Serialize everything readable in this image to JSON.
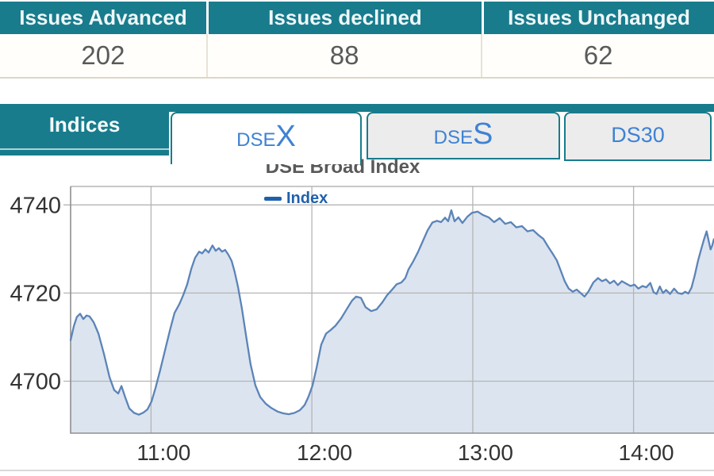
{
  "market_summary": {
    "columns": [
      {
        "label": "Issues Advanced",
        "value": "202"
      },
      {
        "label": "Issues declined",
        "value": "88"
      },
      {
        "label": "Issues Unchanged",
        "value": "62"
      }
    ]
  },
  "tabs": {
    "indices_label": "Indices",
    "items": [
      {
        "label": "DSEX",
        "small": "DSE",
        "large": "X",
        "active": true
      },
      {
        "label": "DSES",
        "small": "DSE",
        "large": "S",
        "active": false
      },
      {
        "label": "DS30",
        "small": "DS30",
        "large": "",
        "active": false
      }
    ]
  },
  "colors": {
    "accent_teal": "#187c8d",
    "tab_text_blue": "#3e82d4",
    "line_blue": "#5b84b8",
    "area_fill": "#dce4ef",
    "legend_blue": "#1f60ab",
    "table_border_cream": "#ddd6c6",
    "grid_gray": "#b5b5b5"
  },
  "chart_data": {
    "type": "area",
    "title": "DSE Broad Index",
    "xlabel": "",
    "ylabel": "",
    "grid": true,
    "legend_position": "top-center",
    "xlim": [
      10.5,
      14.5
    ],
    "ylim": [
      4688.2,
      4744.2
    ],
    "xticks": [
      {
        "t": 11,
        "label": "11:00"
      },
      {
        "t": 12,
        "label": "12:00"
      },
      {
        "t": 13,
        "label": "13:00"
      },
      {
        "t": 14,
        "label": "14:00"
      }
    ],
    "yticks": [
      {
        "v": 4700,
        "label": "4700"
      },
      {
        "v": 4720,
        "label": "4720"
      },
      {
        "v": 4740,
        "label": "4740"
      }
    ],
    "series": [
      {
        "name": "Index",
        "color": "#5b84b8",
        "fill": "#dce4ef",
        "points": [
          [
            10.5,
            4709.3
          ],
          [
            10.52,
            4712.5
          ],
          [
            10.539,
            4714.6
          ],
          [
            10.559,
            4715.3
          ],
          [
            10.579,
            4714.1
          ],
          [
            10.599,
            4714.9
          ],
          [
            10.618,
            4714.7
          ],
          [
            10.643,
            4713.4
          ],
          [
            10.673,
            4710.8
          ],
          [
            10.707,
            4706.2
          ],
          [
            10.742,
            4700.9
          ],
          [
            10.771,
            4698.0
          ],
          [
            10.796,
            4697.2
          ],
          [
            10.816,
            4698.9
          ],
          [
            10.84,
            4696.3
          ],
          [
            10.865,
            4693.8
          ],
          [
            10.895,
            4692.8
          ],
          [
            10.924,
            4692.4
          ],
          [
            10.954,
            4692.9
          ],
          [
            10.978,
            4693.6
          ],
          [
            11.003,
            4695.4
          ],
          [
            11.028,
            4698.5
          ],
          [
            11.057,
            4702.5
          ],
          [
            11.087,
            4707.0
          ],
          [
            11.117,
            4711.5
          ],
          [
            11.146,
            4715.5
          ],
          [
            11.176,
            4717.5
          ],
          [
            11.2,
            4719.5
          ],
          [
            11.225,
            4722.0
          ],
          [
            11.25,
            4725.5
          ],
          [
            11.274,
            4728.0
          ],
          [
            11.299,
            4729.4
          ],
          [
            11.318,
            4729.0
          ],
          [
            11.338,
            4729.9
          ],
          [
            11.358,
            4729.2
          ],
          [
            11.382,
            4730.8
          ],
          [
            11.402,
            4729.6
          ],
          [
            11.422,
            4730.2
          ],
          [
            11.441,
            4729.4
          ],
          [
            11.461,
            4729.8
          ],
          [
            11.481,
            4728.7
          ],
          [
            11.501,
            4727.3
          ],
          [
            11.52,
            4724.8
          ],
          [
            11.54,
            4721.5
          ],
          [
            11.565,
            4716.5
          ],
          [
            11.59,
            4710.5
          ],
          [
            11.619,
            4703.8
          ],
          [
            11.649,
            4699.0
          ],
          [
            11.679,
            4696.4
          ],
          [
            11.713,
            4694.9
          ],
          [
            11.748,
            4693.9
          ],
          [
            11.787,
            4693.1
          ],
          [
            11.822,
            4692.7
          ],
          [
            11.856,
            4692.5
          ],
          [
            11.891,
            4692.8
          ],
          [
            11.925,
            4693.4
          ],
          [
            11.955,
            4694.6
          ],
          [
            11.979,
            4696.5
          ],
          [
            12.004,
            4699.0
          ],
          [
            12.029,
            4703.0
          ],
          [
            12.058,
            4708.3
          ],
          [
            12.088,
            4710.8
          ],
          [
            12.117,
            4711.6
          ],
          [
            12.147,
            4712.6
          ],
          [
            12.181,
            4714.2
          ],
          [
            12.221,
            4716.6
          ],
          [
            12.25,
            4718.3
          ],
          [
            12.275,
            4719.2
          ],
          [
            12.305,
            4718.9
          ],
          [
            12.334,
            4716.8
          ],
          [
            12.369,
            4715.9
          ],
          [
            12.403,
            4716.3
          ],
          [
            12.438,
            4717.9
          ],
          [
            12.467,
            4719.5
          ],
          [
            12.497,
            4720.7
          ],
          [
            12.527,
            4722.0
          ],
          [
            12.556,
            4722.4
          ],
          [
            12.581,
            4723.4
          ],
          [
            12.601,
            4725.4
          ],
          [
            12.63,
            4727.2
          ],
          [
            12.66,
            4729.3
          ],
          [
            12.69,
            4731.8
          ],
          [
            12.719,
            4734.2
          ],
          [
            12.749,
            4736.0
          ],
          [
            12.778,
            4736.4
          ],
          [
            12.803,
            4736.1
          ],
          [
            12.828,
            4737.1
          ],
          [
            12.847,
            4736.3
          ],
          [
            12.867,
            4738.8
          ],
          [
            12.887,
            4736.3
          ],
          [
            12.911,
            4737.2
          ],
          [
            12.936,
            4735.9
          ],
          [
            12.966,
            4737.3
          ],
          [
            12.995,
            4738.2
          ],
          [
            13.03,
            4738.5
          ],
          [
            13.064,
            4737.7
          ],
          [
            13.099,
            4737.2
          ],
          [
            13.133,
            4736.1
          ],
          [
            13.168,
            4737.0
          ],
          [
            13.202,
            4735.7
          ],
          [
            13.237,
            4736.1
          ],
          [
            13.271,
            4734.9
          ],
          [
            13.306,
            4735.2
          ],
          [
            13.34,
            4734.0
          ],
          [
            13.375,
            4734.3
          ],
          [
            13.41,
            4733.1
          ],
          [
            13.439,
            4732.3
          ],
          [
            13.469,
            4730.5
          ],
          [
            13.498,
            4728.9
          ],
          [
            13.523,
            4727.4
          ],
          [
            13.548,
            4725.0
          ],
          [
            13.572,
            4722.7
          ],
          [
            13.597,
            4721.0
          ],
          [
            13.622,
            4720.3
          ],
          [
            13.646,
            4720.8
          ],
          [
            13.671,
            4720.0
          ],
          [
            13.695,
            4719.2
          ],
          [
            13.72,
            4720.4
          ],
          [
            13.75,
            4722.4
          ],
          [
            13.779,
            4723.4
          ],
          [
            13.804,
            4722.7
          ],
          [
            13.828,
            4723.1
          ],
          [
            13.853,
            4722.2
          ],
          [
            13.878,
            4722.8
          ],
          [
            13.902,
            4721.8
          ],
          [
            13.927,
            4722.7
          ],
          [
            13.956,
            4722.1
          ],
          [
            13.981,
            4721.6
          ],
          [
            14.006,
            4721.9
          ],
          [
            14.03,
            4721.0
          ],
          [
            14.055,
            4721.6
          ],
          [
            14.079,
            4721.3
          ],
          [
            14.104,
            4722.3
          ],
          [
            14.124,
            4720.2
          ],
          [
            14.143,
            4719.8
          ],
          [
            14.163,
            4721.5
          ],
          [
            14.183,
            4720.0
          ],
          [
            14.202,
            4720.7
          ],
          [
            14.227,
            4719.8
          ],
          [
            14.252,
            4721.0
          ],
          [
            14.276,
            4720.0
          ],
          [
            14.301,
            4719.8
          ],
          [
            14.321,
            4720.3
          ],
          [
            14.34,
            4719.9
          ],
          [
            14.36,
            4721.2
          ],
          [
            14.38,
            4724.0
          ],
          [
            14.4,
            4727.2
          ],
          [
            14.419,
            4729.8
          ],
          [
            14.439,
            4732.3
          ],
          [
            14.454,
            4734.0
          ],
          [
            14.469,
            4731.5
          ],
          [
            14.479,
            4729.9
          ],
          [
            14.489,
            4730.8
          ],
          [
            14.499,
            4732.2
          ]
        ]
      }
    ]
  }
}
